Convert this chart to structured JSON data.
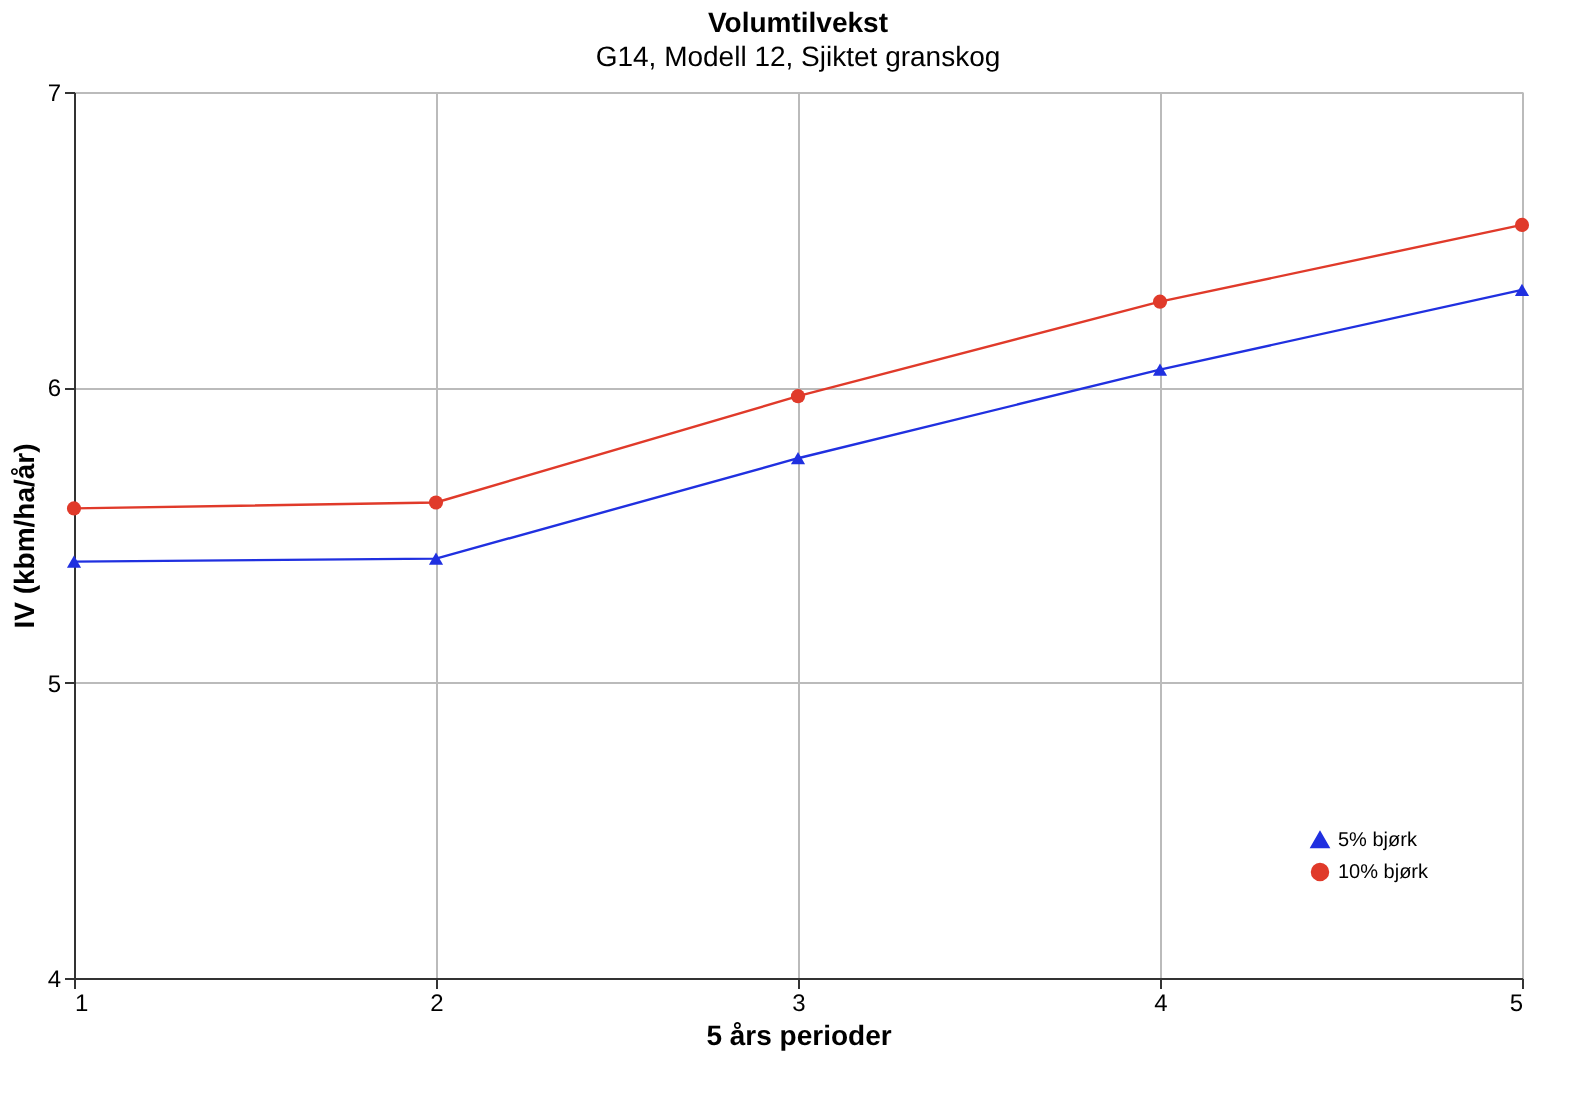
{
  "chart_data": {
    "type": "line",
    "title": "Volumtilvekst",
    "subtitle": "G14, Modell 12, Sjiktet granskog",
    "xlabel": "5 års perioder",
    "ylabel": "IV (kbm/ha/år)",
    "x": [
      1,
      2,
      3,
      4,
      5
    ],
    "xlim": [
      1,
      5
    ],
    "xticks": [
      1,
      2,
      3,
      4,
      5
    ],
    "ylim": [
      4,
      7
    ],
    "yticks": [
      4,
      5,
      6,
      7
    ],
    "grid": true,
    "legend": "bottom right",
    "series": [
      {
        "name": "5% bjørk",
        "color": "#2030e0",
        "marker": "triangle",
        "values": [
          5.41,
          5.42,
          5.76,
          6.06,
          6.33
        ]
      },
      {
        "name": "10% bjørk",
        "color": "#e03a2a",
        "marker": "circle",
        "values": [
          5.59,
          5.61,
          5.97,
          6.29,
          6.55
        ]
      }
    ]
  }
}
